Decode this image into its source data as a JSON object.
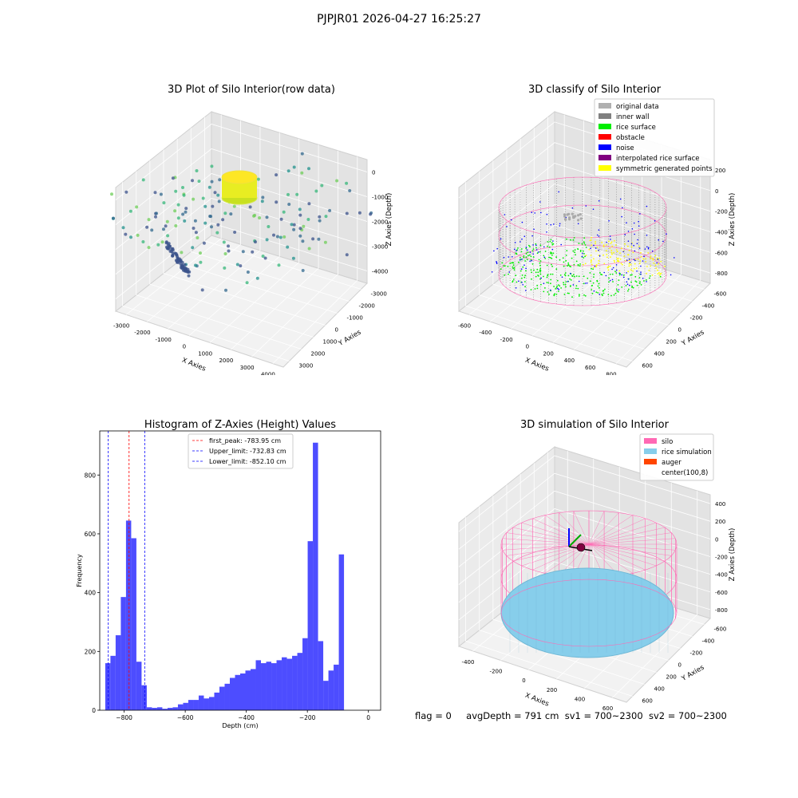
{
  "suptitle": "PJPJR01 2026-04-27 16:25:27",
  "footer": {
    "flag": "flag = 0",
    "avg": "avgDepth = 791 cm",
    "sv1": "sv1 = 700~2300",
    "sv2": "sv2 = 700~2300"
  },
  "colors": {
    "silo": "#ff69b4",
    "rice_simulation": "#87ceeb",
    "auger": "#ff4500",
    "hist_bar": "#4d4dff",
    "peak_line": "#ff0000",
    "limit_line": "#0000ff"
  },
  "chart_data": [
    {
      "type": "scatter",
      "projection": "3d",
      "title": "3D Plot of Silo Interior(row data)",
      "xlabel": "X Axies",
      "ylabel": "Y Axies",
      "zlabel": "Z Axies (Depth)",
      "xticks": [
        "-3000",
        "-2000",
        "-1000",
        "0",
        "1000",
        "2000",
        "3000",
        "4000"
      ],
      "yticks": [
        "-3000",
        "-2000",
        "-1000",
        "0",
        "1000",
        "2000",
        "3000"
      ],
      "zticks": [
        "0",
        "-1000",
        "-2000",
        "-3000",
        "-4000"
      ],
      "colormap": "viridis"
    },
    {
      "type": "scatter",
      "projection": "3d",
      "title": "3D classify of Silo Interior",
      "xlabel": "X Axies",
      "ylabel": "Y Axies",
      "zlabel": "Z Axies (Depth)",
      "xticks": [
        "-600",
        "-400",
        "-200",
        "0",
        "200",
        "400",
        "600",
        "800"
      ],
      "yticks": [
        "-600",
        "-400",
        "-200",
        "0",
        "200",
        "400",
        "600"
      ],
      "zticks": [
        "200",
        "0",
        "-200",
        "-400",
        "-600",
        "-800"
      ],
      "legend_position": "top-right",
      "legend": [
        {
          "label": "original data",
          "color": "#b0b0b0"
        },
        {
          "label": "inner wall",
          "color": "#808080"
        },
        {
          "label": "rice surface",
          "color": "#00ee00"
        },
        {
          "label": "obstacle",
          "color": "#ff0000"
        },
        {
          "label": "noise",
          "color": "#0000ff"
        },
        {
          "label": "interpolated rice surface",
          "color": "#800080"
        },
        {
          "label": "symmetric generated points",
          "color": "#ffff00"
        }
      ]
    },
    {
      "type": "bar",
      "title": "Histogram of Z-Axies (Height) Values",
      "xlabel": "Depth (cm)",
      "ylabel": "Frequency",
      "xlim": [
        -880,
        40
      ],
      "ylim": [
        0,
        950
      ],
      "xticks": [
        -800,
        -600,
        -400,
        -200,
        0
      ],
      "yticks": [
        0,
        200,
        400,
        600,
        800
      ],
      "bin_start": -862,
      "bin_width": 17,
      "counts": [
        160,
        185,
        255,
        385,
        645,
        585,
        165,
        85,
        10,
        8,
        10,
        5,
        8,
        10,
        20,
        25,
        35,
        35,
        50,
        40,
        45,
        60,
        80,
        90,
        110,
        120,
        125,
        135,
        140,
        170,
        160,
        165,
        160,
        170,
        180,
        175,
        185,
        195,
        245,
        575,
        910,
        235,
        100,
        135,
        155,
        530
      ],
      "vlines": [
        {
          "label": "first_peak: -783.95 cm",
          "value": -783.95,
          "color": "#ff0000"
        },
        {
          "label": "Upper_limit: -732.83 cm",
          "value": -732.83,
          "color": "#0000ff"
        },
        {
          "label": "Lower_limit: -852.10 cm",
          "value": -852.1,
          "color": "#0000ff"
        }
      ],
      "legend_position": "top-center"
    },
    {
      "type": "scatter",
      "projection": "3d",
      "title": "3D simulation of Silo Interior",
      "xlabel": "X Axies",
      "ylabel": "Y Axies",
      "zlabel": "Z Axies (Depth)",
      "xticks": [
        "-400",
        "-200",
        "0",
        "200",
        "400",
        "600"
      ],
      "yticks": [
        "-600",
        "-400",
        "-200",
        "0",
        "200",
        "400",
        "600"
      ],
      "zticks": [
        "400",
        "200",
        "0",
        "-200",
        "-400",
        "-600",
        "-800"
      ],
      "legend_position": "top-right",
      "legend": [
        {
          "label": "silo",
          "color": "#ff69b4"
        },
        {
          "label": "rice simulation",
          "color": "#87ceeb"
        },
        {
          "label": "auger",
          "color": "#ff4500"
        },
        {
          "label": "center(100,8)",
          "color": "#ffffff"
        }
      ]
    }
  ]
}
